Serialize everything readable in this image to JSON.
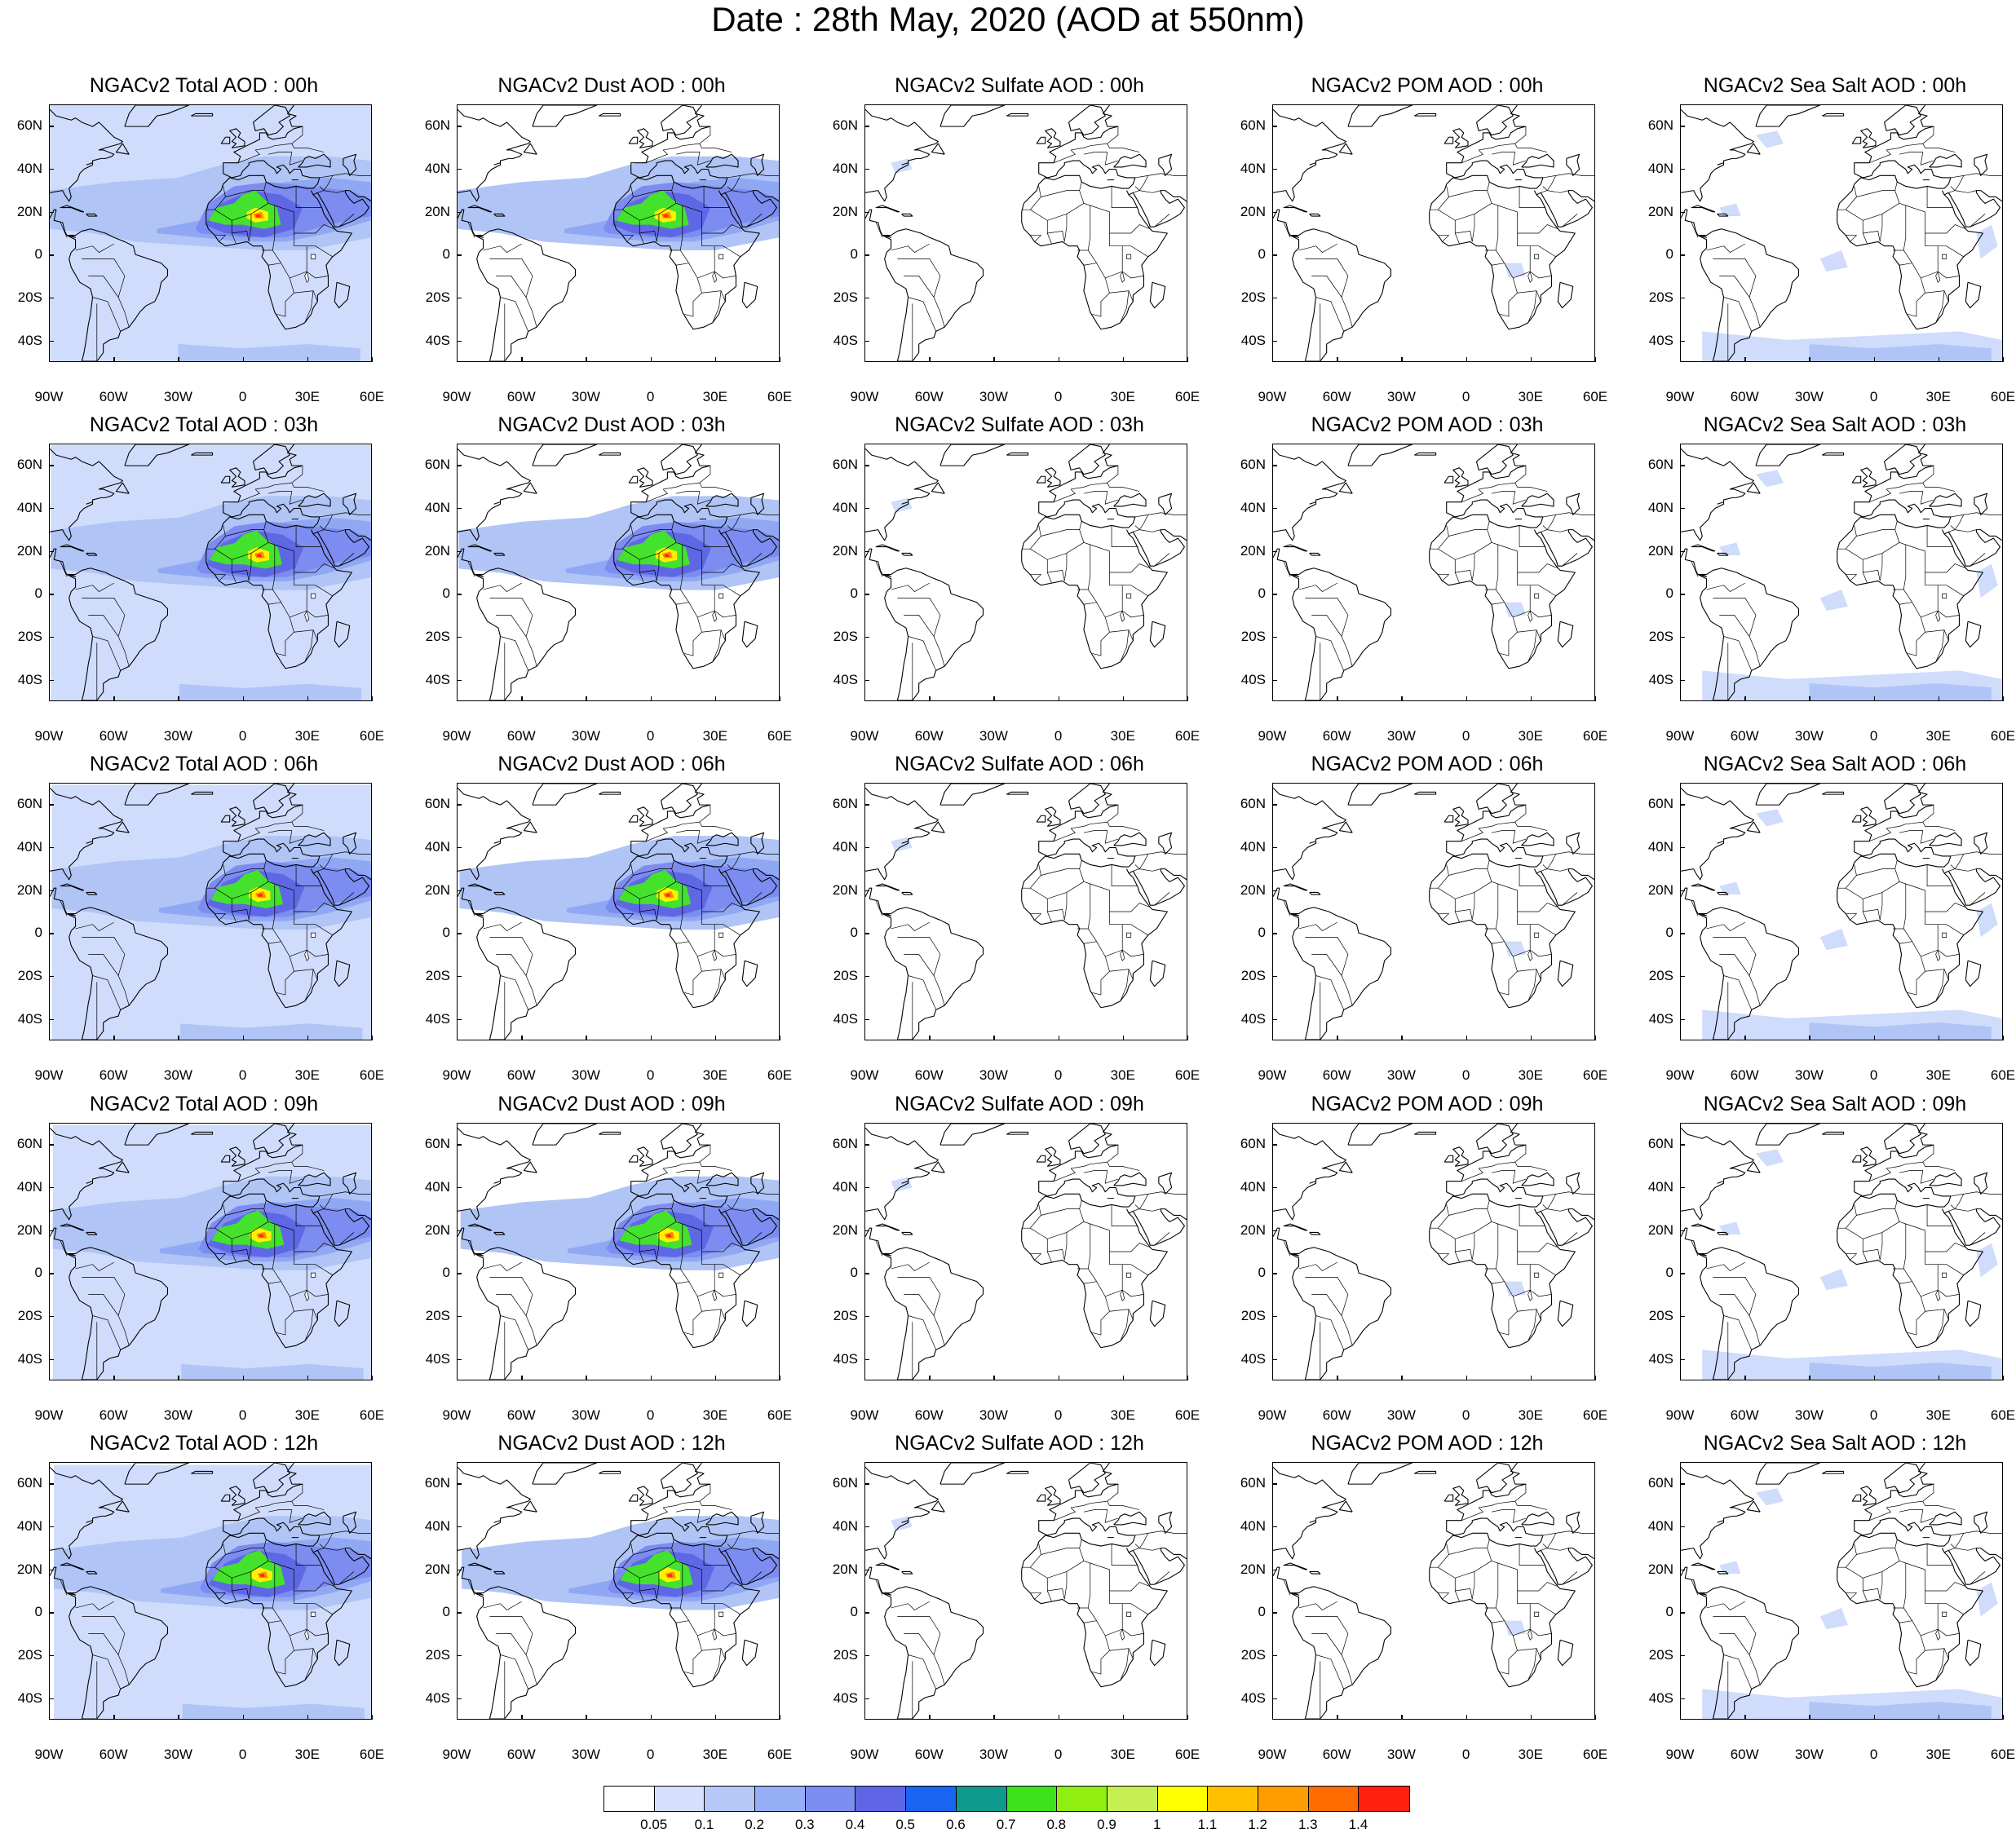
{
  "title": "Date : 28th May, 2020 (AOD at 550nm)",
  "colors": {
    "very_light": "#d0dcfc",
    "light": "#b0c4f6",
    "mid": "#90a8f4",
    "deep": "#7c8cf0",
    "strong": "#5f68e4",
    "green": "#44e22c",
    "yellow": "#fff200",
    "orange": "#ff8a00",
    "red": "#ff2a10"
  },
  "map": {
    "latitude_labels": [
      "60N",
      "40N",
      "20N",
      "0",
      "20S",
      "40S"
    ],
    "longitude_labels": [
      "90W",
      "60W",
      "30W",
      "0",
      "30E",
      "60E"
    ],
    "lat_range": [
      -50,
      70
    ],
    "lon_range": [
      -90,
      60
    ]
  },
  "panels": [
    {
      "title": "NGACv2 Total AOD : 00h",
      "species": "total",
      "time": "00h"
    },
    {
      "title": "NGACv2 Dust AOD : 00h",
      "species": "dust",
      "time": "00h"
    },
    {
      "title": "NGACv2 Sulfate AOD : 00h",
      "species": "sulfate",
      "time": "00h"
    },
    {
      "title": "NGACv2 POM AOD : 00h",
      "species": "pom",
      "time": "00h"
    },
    {
      "title": "NGACv2 Sea Salt AOD : 00h",
      "species": "seasalt",
      "time": "00h"
    },
    {
      "title": "NGACv2 Total AOD : 03h",
      "species": "total",
      "time": "03h"
    },
    {
      "title": "NGACv2 Dust AOD : 03h",
      "species": "dust",
      "time": "03h"
    },
    {
      "title": "NGACv2 Sulfate AOD : 03h",
      "species": "sulfate",
      "time": "03h"
    },
    {
      "title": "NGACv2 POM AOD : 03h",
      "species": "pom",
      "time": "03h"
    },
    {
      "title": "NGACv2 Sea Salt AOD : 03h",
      "species": "seasalt",
      "time": "03h"
    },
    {
      "title": "NGACv2 Total AOD : 06h",
      "species": "total",
      "time": "06h"
    },
    {
      "title": "NGACv2 Dust AOD : 06h",
      "species": "dust",
      "time": "06h"
    },
    {
      "title": "NGACv2 Sulfate AOD : 06h",
      "species": "sulfate",
      "time": "06h"
    },
    {
      "title": "NGACv2 POM AOD : 06h",
      "species": "pom",
      "time": "06h"
    },
    {
      "title": "NGACv2 Sea Salt AOD : 06h",
      "species": "seasalt",
      "time": "06h"
    },
    {
      "title": "NGACv2 Total AOD : 09h",
      "species": "total",
      "time": "09h"
    },
    {
      "title": "NGACv2 Dust AOD : 09h",
      "species": "dust",
      "time": "09h"
    },
    {
      "title": "NGACv2 Sulfate AOD : 09h",
      "species": "sulfate",
      "time": "09h"
    },
    {
      "title": "NGACv2 POM AOD : 09h",
      "species": "pom",
      "time": "09h"
    },
    {
      "title": "NGACv2 Sea Salt  AOD : 09h",
      "species": "seasalt",
      "time": "09h"
    },
    {
      "title": "NGACv2 Total AOD  : 12h",
      "species": "total",
      "time": "12h"
    },
    {
      "title": "NGACv2 Dust AOD : 12h",
      "species": "dust",
      "time": "12h"
    },
    {
      "title": "NGACv2 Sulfate AOD : 12h",
      "species": "sulfate",
      "time": "12h"
    },
    {
      "title": "NGACv2 POM  AOD : 12h",
      "species": "pom",
      "time": "12h"
    },
    {
      "title": "NGACv2 Sea Salt  AOD : 12h",
      "species": "seasalt",
      "time": "12h"
    }
  ],
  "colorbar": {
    "labels": [
      "0.05",
      "0.1",
      "0.2",
      "0.3",
      "0.4",
      "0.5",
      "0.6",
      "0.7",
      "0.8",
      "0.9",
      "1",
      "1.1",
      "1.2",
      "1.3",
      "1.4"
    ],
    "colors": [
      "#ffffff",
      "#d4e0fc",
      "#b5c8f8",
      "#96aef6",
      "#7c8ef0",
      "#5f66e6",
      "#1a64f2",
      "#0e9a8c",
      "#3ee21a",
      "#90ee10",
      "#c6f052",
      "#ffff00",
      "#ffc000",
      "#ff9c00",
      "#ff6c00",
      "#ff2010"
    ]
  }
}
